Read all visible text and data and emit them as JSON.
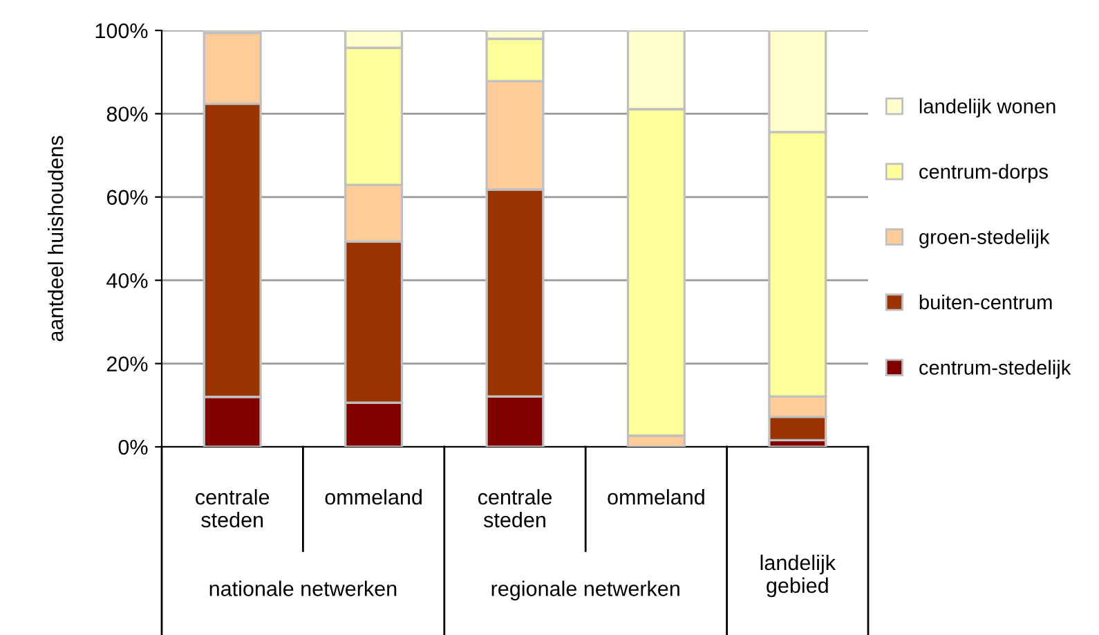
{
  "chart_data": {
    "type": "bar",
    "stacked": true,
    "ylabel": "aantdeel huishoudens",
    "categories": [
      "centrale\nsteden",
      "ommeland",
      "centrale\nsteden",
      "ommeland",
      null
    ],
    "series": [
      {
        "name": "centrum-stedelijk",
        "color": "#800000",
        "values": [
          12,
          10.6,
          12.1,
          null,
          1.6
        ]
      },
      {
        "name": "buiten-centrum",
        "color": "#993300",
        "values": [
          70.4,
          38.7,
          49.7,
          null,
          5.6
        ]
      },
      {
        "name": "groen-stedelijk",
        "color": "#ffcc99",
        "values": [
          17,
          13.6,
          26,
          2.7,
          4.9
        ]
      },
      {
        "name": "centrum-dorps",
        "color": "#ffff99",
        "values": [
          0.6,
          32.9,
          10.2,
          78.4,
          63.5
        ]
      },
      {
        "name": "landelijk wonen",
        "color": "#ffffcc",
        "values": [
          null,
          4.2,
          2,
          18.9,
          24.4
        ]
      }
    ],
    "annotations": [
      "nationale netwerken",
      "regionale netwerken",
      "landelijk\ngebied"
    ],
    "ylim": [
      0,
      100
    ],
    "yticks": [
      {
        "value": 0,
        "label": "0%"
      },
      {
        "value": 20,
        "label": "20%"
      },
      {
        "value": 40,
        "label": "40%"
      },
      {
        "value": 60,
        "label": "60%"
      },
      {
        "value": 80,
        "label": "80%"
      },
      {
        "value": 100,
        "label": "100%"
      }
    ],
    "grid": "y",
    "legend": "right"
  }
}
